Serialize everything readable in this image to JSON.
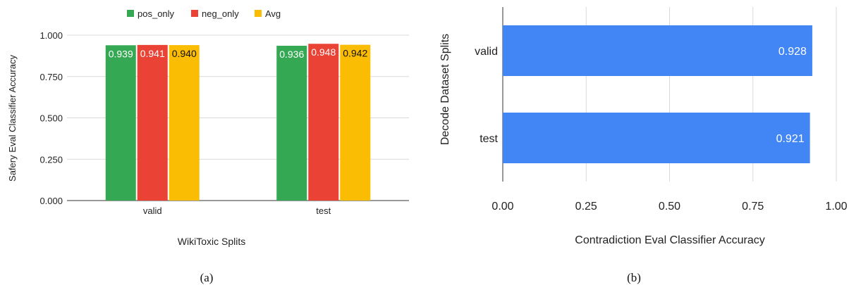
{
  "chart_data": [
    {
      "type": "bar",
      "orientation": "vertical",
      "categories": [
        "valid",
        "test"
      ],
      "series": [
        {
          "name": "pos_only",
          "values": [
            0.939,
            0.936
          ],
          "labels": [
            "0.939",
            "0.936"
          ],
          "color": "#34a853"
        },
        {
          "name": "neg_only",
          "values": [
            0.941,
            0.948
          ],
          "labels": [
            "0.941",
            "0.948"
          ],
          "color": "#ea4335"
        },
        {
          "name": "Avg",
          "values": [
            0.94,
            0.942
          ],
          "labels": [
            "0.940",
            "0.942"
          ],
          "color": "#fbbc04"
        }
      ],
      "title": "",
      "xlabel": "WikiToxic Splits",
      "ylabel": "Safery Eval Classifier Accuracy",
      "ylim": [
        0,
        1
      ],
      "yticks": [
        0.0,
        0.25,
        0.5,
        0.75,
        1.0
      ],
      "ytick_labels": [
        "0.000",
        "0.250",
        "0.500",
        "0.750",
        "1.000"
      ],
      "legend_position": "top",
      "grid": true,
      "caption": "(a)"
    },
    {
      "type": "bar",
      "orientation": "horizontal",
      "categories": [
        "valid",
        "test"
      ],
      "series": [
        {
          "name": "",
          "values": [
            0.928,
            0.921
          ],
          "labels": [
            "0.928",
            "0.921"
          ],
          "color": "#4285f4"
        }
      ],
      "title": "",
      "xlabel": "Contradiction Eval Classifier Accuracy",
      "ylabel": "Decode Dataset Splits",
      "xlim": [
        0,
        1
      ],
      "xticks": [
        0.0,
        0.25,
        0.5,
        0.75,
        1.0
      ],
      "xtick_labels": [
        "0.00",
        "0.25",
        "0.50",
        "0.75",
        "1.00"
      ],
      "grid": true,
      "caption": "(b)"
    }
  ]
}
